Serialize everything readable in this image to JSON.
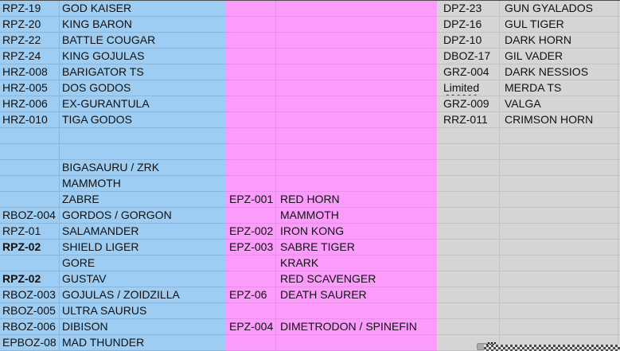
{
  "app": {
    "description": "spreadsheet fragment listing model kit codes and names"
  },
  "colors": {
    "fill_blue": "#9ECDF3",
    "fill_pink": "#FB9BFB",
    "fill_gray": "#D5D5D5",
    "gridline_blue": "#8BB6DB",
    "gridline_pink": "#E98FE9",
    "gridline_gray": "#C2C2C2",
    "misspell_underline": "#DD0000",
    "text": "#101010"
  },
  "sheet": {
    "rows": [
      {
        "a": "RPZ-19",
        "b": "GOD KAISER",
        "c": "",
        "d": "",
        "e": "DPZ-23",
        "f": "GUN GYALADOS"
      },
      {
        "a": "RPZ-20",
        "b": "KING BARON",
        "c": "",
        "d": "",
        "e": "DPZ-16",
        "f": "GUL TIGER"
      },
      {
        "a": "RPZ-22",
        "b": "BATTLE COUGAR",
        "c": "",
        "d": "",
        "e": "DPZ-10",
        "f": "DARK HORN"
      },
      {
        "a": "RPZ-24",
        "b": "KING GOJULAS",
        "c": "",
        "d": "",
        "e": "DBOZ-17",
        "f": "GIL VADER"
      },
      {
        "a": "HRZ-008",
        "b": "BARIGATOR TS",
        "c": "",
        "d": "",
        "e": "GRZ-004",
        "f": "DARK NESSIOS"
      },
      {
        "a": "HRZ-005",
        "b": "DOS GODOS",
        "c": "",
        "d": "",
        "e": "Limited",
        "f": "MERDA TS",
        "eMisspelled": true
      },
      {
        "a": "HRZ-006",
        "b": "EX-GURANTULA",
        "c": "",
        "d": "",
        "e": "GRZ-009",
        "f": "VALGA"
      },
      {
        "a": "HRZ-010",
        "b": "TIGA GODOS",
        "c": "",
        "d": "",
        "e": "RRZ-011",
        "f": "CRIMSON HORN"
      },
      {
        "a": "",
        "b": "",
        "c": "",
        "d": "",
        "e": "",
        "f": ""
      },
      {
        "a": "",
        "b": "",
        "c": "",
        "d": "",
        "e": "",
        "f": ""
      },
      {
        "a": "",
        "b": "BIGASAURU / ZRK",
        "c": "",
        "d": "",
        "e": "",
        "f": ""
      },
      {
        "a": "",
        "b": "MAMMOTH",
        "c": "",
        "d": "",
        "e": "",
        "f": ""
      },
      {
        "a": "",
        "b": "ZABRE",
        "c": "EPZ-001",
        "d": "RED HORN",
        "e": "",
        "f": ""
      },
      {
        "a": "RBOZ-004",
        "b": "GORDOS / GORGON",
        "c": "",
        "d": "MAMMOTH",
        "e": "",
        "f": ""
      },
      {
        "a": "RPZ-01",
        "b": "SALAMANDER",
        "c": "EPZ-002",
        "d": "IRON KONG",
        "e": "",
        "f": ""
      },
      {
        "a": "RPZ-02",
        "b": "SHIELD LIGER",
        "c": "EPZ-003",
        "d": "SABRE TIGER",
        "e": "",
        "f": "",
        "aBold": true
      },
      {
        "a": "",
        "b": "GORE",
        "c": "",
        "d": "KRARK",
        "e": "",
        "f": ""
      },
      {
        "a": "RPZ-02",
        "b": "GUSTAV",
        "c": "",
        "d": "RED SCAVENGER",
        "e": "",
        "f": "",
        "aBold": true
      },
      {
        "a": "RBOZ-003",
        "b": "GOJULAS / ZOIDZILLA",
        "c": "EPZ-06",
        "d": "DEATH SAURER",
        "e": "",
        "f": ""
      },
      {
        "a": "RBOZ-005",
        "b": "ULTRA SAURUS",
        "c": "",
        "d": "",
        "e": "",
        "f": ""
      },
      {
        "a": "RBOZ-006",
        "b": "DIBISON",
        "c": "EPZ-004",
        "d": "DIMETRODON / SPINEFIN",
        "e": "",
        "f": ""
      },
      {
        "a": "EPBOZ-08",
        "b": "MAD THUNDER",
        "c": "",
        "d": "",
        "e": "",
        "f": ""
      }
    ]
  },
  "artifacts": {
    "selection_marquee": true
  }
}
